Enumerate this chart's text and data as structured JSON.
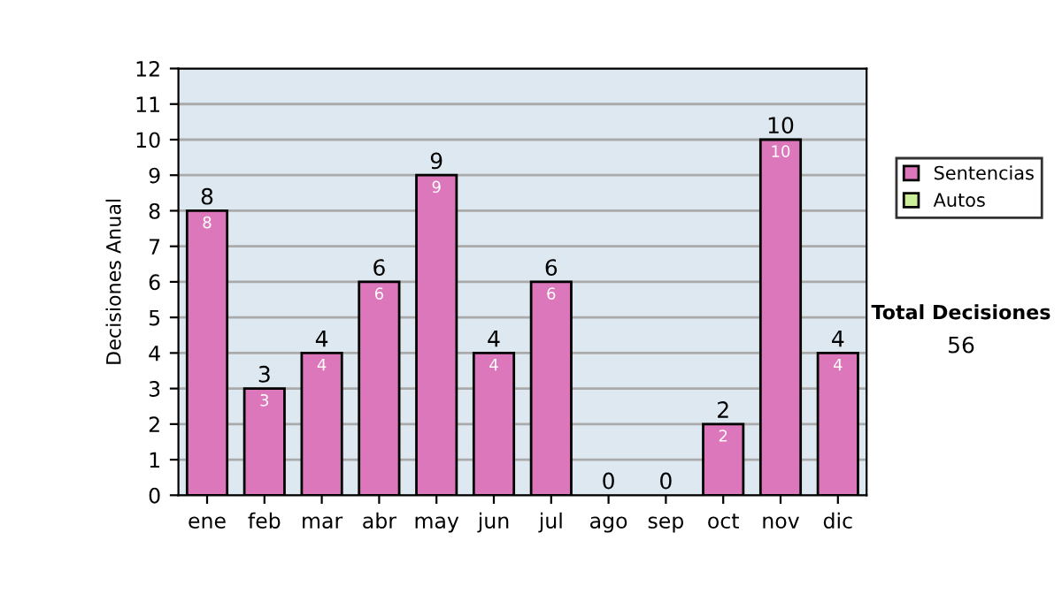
{
  "chart_data": {
    "type": "bar",
    "stacked": true,
    "ylabel": "Decisiones Anual",
    "categories": [
      "ene",
      "feb",
      "mar",
      "abr",
      "may",
      "jun",
      "jul",
      "ago",
      "sep",
      "oct",
      "nov",
      "dic"
    ],
    "series": [
      {
        "name": "Sentencias",
        "color": "#dd77bb",
        "values": [
          8,
          3,
          4,
          6,
          9,
          4,
          6,
          0,
          0,
          2,
          10,
          4
        ],
        "value_labels": [
          "8",
          "3",
          "4",
          "6",
          "9",
          "4",
          "6",
          null,
          null,
          "2",
          "10",
          "4"
        ]
      },
      {
        "name": "Autos",
        "color": "#ccee99",
        "values": [
          0,
          0,
          0,
          0,
          0,
          0,
          0,
          0,
          0,
          0,
          0,
          0
        ]
      }
    ],
    "totals": [
      "8",
      "3",
      "4",
      "6",
      "9",
      "4",
      "6",
      "0",
      "0",
      "2",
      "10",
      "4"
    ],
    "ylim": [
      0,
      12
    ],
    "yticks": [
      0,
      1,
      2,
      3,
      4,
      5,
      6,
      7,
      8,
      9,
      10,
      11,
      12
    ],
    "grid": "y",
    "legend": "right",
    "annotations": [
      "Total Decisiones",
      "56"
    ]
  }
}
